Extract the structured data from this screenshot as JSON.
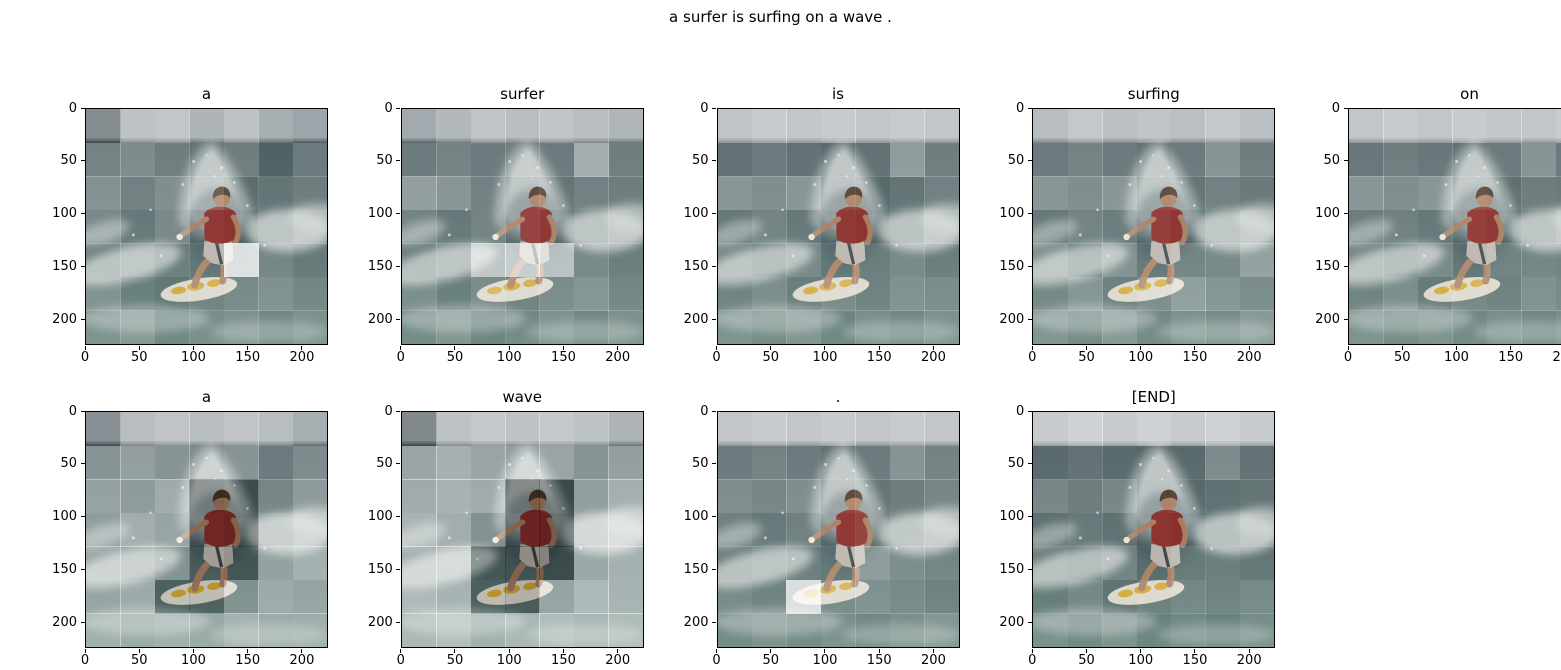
{
  "chart_data": {
    "type": "heatmap",
    "suptitle": "a surfer is surfing on a wave .",
    "description": "Image-captioning attention visualization: the same 224x224 surfer photo shown 9 times, one panel per generated token, with a 7x7 attention mask overlaid as translucent white (positive = brighter attention) or dark (negative = dimmed) blocks.",
    "layout": {
      "rows": 2,
      "cols": 5
    },
    "x_ticks": [
      "0",
      "50",
      "100",
      "150",
      "200"
    ],
    "y_ticks": [
      "0",
      "50",
      "100",
      "150",
      "200"
    ],
    "tick_values": [
      0,
      50,
      100,
      150,
      200
    ],
    "extent": [
      0,
      224
    ],
    "grid_size": 7,
    "panels": [
      {
        "title": "a",
        "row": 0,
        "col": 0,
        "attention": [
          [
            -0.12,
            0.35,
            0.4,
            0.2,
            0.35,
            0.15,
            0.05
          ],
          [
            0.25,
            0.3,
            0.22,
            0.15,
            0.22,
            0.05,
            0.2
          ],
          [
            0.32,
            0.22,
            0.3,
            0.2,
            0.1,
            0.15,
            0.2
          ],
          [
            0.25,
            0.15,
            0.25,
            0.05,
            0.02,
            0.15,
            0.25
          ],
          [
            0.18,
            0.25,
            0.15,
            0.1,
            0.8,
            0.2,
            0.12
          ],
          [
            0.25,
            0.12,
            0.08,
            0.15,
            0.2,
            0.25,
            0.18
          ],
          [
            0.2,
            0.25,
            0.12,
            0.18,
            0.22,
            0.15,
            0.22
          ]
        ]
      },
      {
        "title": "surfer",
        "row": 0,
        "col": 1,
        "attention": [
          [
            0.1,
            0.25,
            0.38,
            0.3,
            0.38,
            0.3,
            0.22
          ],
          [
            0.2,
            0.25,
            0.2,
            0.22,
            0.2,
            0.5,
            0.22
          ],
          [
            0.4,
            0.35,
            0.22,
            0.1,
            0.15,
            0.22,
            0.2
          ],
          [
            0.22,
            0.15,
            0.22,
            0.1,
            0.05,
            0.15,
            0.22
          ],
          [
            0.15,
            0.22,
            0.62,
            0.68,
            0.6,
            0.22,
            0.15
          ],
          [
            0.22,
            0.12,
            0.22,
            0.15,
            0.22,
            0.28,
            0.18
          ],
          [
            0.15,
            0.22,
            0.1,
            0.15,
            0.22,
            0.15,
            0.22
          ]
        ]
      },
      {
        "title": "is",
        "row": 0,
        "col": 2,
        "attention": [
          [
            0.38,
            0.45,
            0.4,
            0.45,
            0.4,
            0.45,
            0.4
          ],
          [
            0.15,
            0.2,
            0.15,
            0.1,
            0.15,
            0.4,
            0.22
          ],
          [
            0.35,
            0.3,
            0.35,
            0.1,
            0.08,
            0.15,
            0.22
          ],
          [
            0.15,
            0.22,
            0.15,
            0.05,
            0.02,
            0.12,
            0.28
          ],
          [
            0.22,
            0.15,
            0.22,
            0.1,
            0.15,
            0.22,
            0.15
          ],
          [
            0.15,
            0.22,
            0.12,
            0.2,
            0.15,
            0.25,
            0.22
          ],
          [
            0.2,
            0.15,
            0.22,
            0.12,
            0.2,
            0.15,
            0.22
          ]
        ]
      },
      {
        "title": "surfing",
        "row": 0,
        "col": 3,
        "attention": [
          [
            0.3,
            0.42,
            0.32,
            0.38,
            0.32,
            0.42,
            0.32
          ],
          [
            0.2,
            0.25,
            0.2,
            0.15,
            0.2,
            0.35,
            0.22
          ],
          [
            0.35,
            0.3,
            0.35,
            0.12,
            0.15,
            0.22,
            0.18
          ],
          [
            0.15,
            0.22,
            0.18,
            0.08,
            0.04,
            0.18,
            0.28
          ],
          [
            0.25,
            0.15,
            0.28,
            0.12,
            0.2,
            0.22,
            0.38
          ],
          [
            0.18,
            0.28,
            0.15,
            0.22,
            0.35,
            0.28,
            0.22
          ],
          [
            0.22,
            0.15,
            0.25,
            0.15,
            0.22,
            0.18,
            0.28
          ]
        ]
      },
      {
        "title": "on",
        "row": 0,
        "col": 4,
        "attention": [
          [
            0.4,
            0.45,
            0.4,
            0.45,
            0.4,
            0.4,
            0.45
          ],
          [
            0.18,
            0.22,
            0.18,
            0.15,
            0.2,
            0.35,
            0.2
          ],
          [
            0.35,
            0.3,
            0.35,
            0.15,
            0.12,
            0.2,
            0.18
          ],
          [
            0.18,
            0.2,
            0.15,
            0.08,
            0.05,
            0.15,
            0.25
          ],
          [
            0.2,
            0.15,
            0.22,
            0.1,
            0.18,
            0.2,
            0.18
          ],
          [
            0.15,
            0.22,
            0.1,
            0.18,
            0.15,
            0.25,
            0.2
          ],
          [
            0.2,
            0.15,
            0.2,
            0.15,
            0.2,
            0.15,
            0.2
          ]
        ]
      },
      {
        "title": "a",
        "row": 1,
        "col": 0,
        "attention": [
          [
            -0.1,
            0.3,
            0.38,
            0.3,
            0.38,
            0.3,
            0.15
          ],
          [
            0.35,
            0.42,
            0.35,
            0.3,
            0.35,
            0.2,
            0.3
          ],
          [
            0.42,
            0.38,
            0.48,
            -0.22,
            -0.18,
            0.25,
            0.38
          ],
          [
            0.38,
            0.48,
            0.42,
            -0.18,
            -0.22,
            0.32,
            0.42
          ],
          [
            0.42,
            0.38,
            0.28,
            -0.12,
            -0.18,
            0.38,
            0.48
          ],
          [
            0.38,
            0.42,
            -0.1,
            -0.12,
            0.25,
            0.42,
            0.38
          ],
          [
            0.42,
            0.38,
            0.42,
            0.38,
            0.45,
            0.4,
            0.42
          ]
        ]
      },
      {
        "title": "wave",
        "row": 1,
        "col": 1,
        "attention": [
          [
            -0.15,
            0.35,
            0.42,
            0.35,
            0.42,
            0.35,
            0.2
          ],
          [
            0.45,
            0.52,
            0.45,
            0.4,
            0.45,
            0.35,
            0.42
          ],
          [
            0.48,
            0.52,
            0.48,
            -0.28,
            -0.22,
            0.4,
            0.5
          ],
          [
            0.52,
            0.48,
            0.3,
            -0.22,
            -0.28,
            0.45,
            0.52
          ],
          [
            0.48,
            0.52,
            -0.18,
            -0.22,
            -0.28,
            0.42,
            0.48
          ],
          [
            0.52,
            0.48,
            -0.12,
            -0.18,
            0.38,
            0.52,
            0.48
          ],
          [
            0.48,
            0.52,
            0.42,
            0.48,
            0.52,
            0.48,
            0.52
          ]
        ]
      },
      {
        "title": ".",
        "row": 1,
        "col": 2,
        "attention": [
          [
            0.4,
            0.45,
            0.4,
            0.45,
            0.4,
            0.45,
            0.4
          ],
          [
            0.2,
            0.25,
            0.2,
            0.15,
            0.2,
            0.35,
            0.25
          ],
          [
            0.3,
            0.25,
            0.3,
            0.1,
            0.15,
            0.2,
            0.25
          ],
          [
            0.2,
            0.15,
            0.2,
            0.05,
            0.1,
            0.2,
            0.3
          ],
          [
            0.15,
            0.2,
            0.15,
            0.1,
            0.35,
            0.25,
            0.2
          ],
          [
            0.2,
            0.15,
            0.78,
            0.2,
            0.25,
            0.2,
            0.15
          ],
          [
            0.15,
            0.2,
            0.15,
            0.2,
            0.15,
            0.2,
            0.25
          ]
        ]
      },
      {
        "title": "[END]",
        "row": 1,
        "col": 3,
        "attention": [
          [
            0.45,
            0.52,
            0.45,
            0.52,
            0.45,
            0.52,
            0.45
          ],
          [
            0.1,
            0.15,
            0.1,
            0.08,
            0.1,
            0.3,
            0.15
          ],
          [
            0.25,
            0.2,
            0.25,
            0.05,
            0.08,
            0.12,
            0.15
          ],
          [
            0.1,
            0.15,
            0.1,
            0.02,
            0.0,
            0.1,
            0.2
          ],
          [
            0.15,
            0.1,
            0.18,
            0.04,
            0.12,
            0.15,
            0.1
          ],
          [
            0.1,
            0.18,
            0.06,
            0.12,
            0.18,
            0.15,
            0.2
          ],
          [
            0.18,
            0.12,
            0.2,
            0.1,
            0.15,
            0.1,
            0.18
          ]
        ]
      }
    ]
  },
  "scene": {
    "subject": "surfer in red shirt crouching on a white surfboard with yellow markings, riding a breaking wave with white spray",
    "palette": {
      "sky": "#99a1a6",
      "sea-dark": "#46585b",
      "sea-mid": "#4f6465",
      "sea-light": "#5d7a74",
      "foam": "#ccd3d0",
      "spray": "#dfe3e1",
      "shirt": "#8b2f2c",
      "skin": "#a87e61",
      "hair": "#4c3929",
      "shorts": "#b9b4aa",
      "shorts-stripe": "#3a434b",
      "board": "#d9d6c9",
      "board-mark": "#d2a733"
    }
  }
}
